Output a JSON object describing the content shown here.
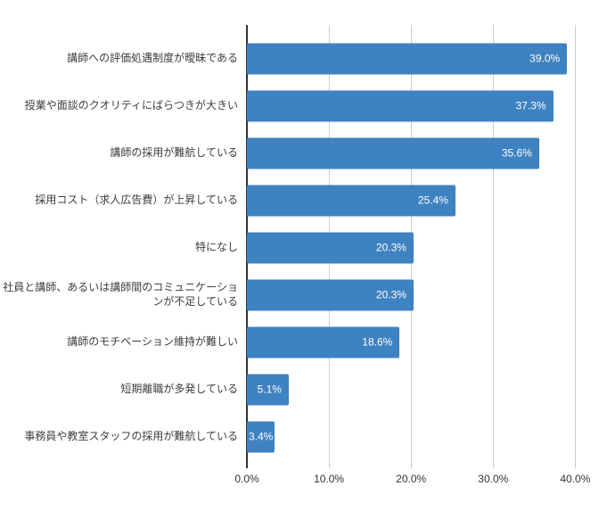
{
  "chart_data": {
    "type": "bar",
    "orientation": "horizontal",
    "title": "",
    "xlabel": "",
    "ylabel": "",
    "categories": [
      "講師への評価処遇制度が曖昧である",
      "授業や面談のクオリティにばらつきが大きい",
      "講師の採用が難航している",
      "採用コスト（求人広告費）が上昇している",
      "特になし",
      "社員と講師、あるいは講師間のコミュニケーショ\nンが不足している",
      "講師のモチベーション維持が難しい",
      "短期離職が多発している",
      "事務員や教室スタッフの採用が難航している"
    ],
    "values": [
      39.0,
      37.3,
      35.6,
      25.4,
      20.3,
      20.3,
      18.6,
      5.1,
      3.4
    ],
    "value_labels": [
      "39.0%",
      "37.3%",
      "35.6%",
      "25.4%",
      "20.3%",
      "20.3%",
      "18.6%",
      "5.1%",
      "3.4%"
    ],
    "x_ticks": [
      "0.0%",
      "10.0%",
      "20.0%",
      "30.0%",
      "40.0%"
    ],
    "x_tick_values": [
      0,
      10,
      20,
      30,
      40
    ],
    "xlim": [
      0,
      41.8
    ],
    "grid": true,
    "legend": "none",
    "colors": {
      "bar": "#3e82c1",
      "value_label": "#ffffff",
      "category_label": "#3d3d3d",
      "tick_label": "#333333",
      "gridline": "#cccccc",
      "axis_line": "#333333"
    }
  }
}
